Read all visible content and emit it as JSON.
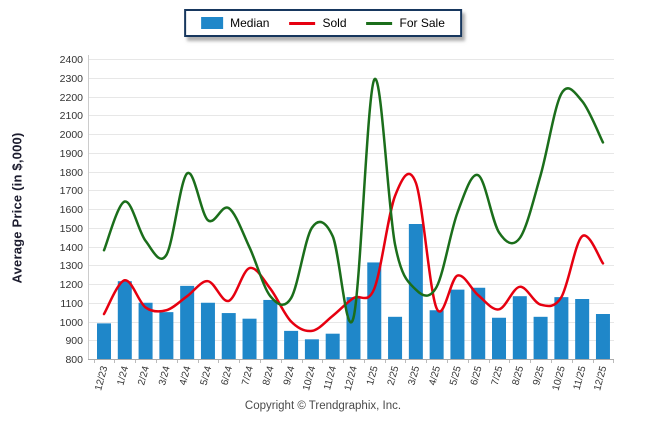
{
  "footer": {
    "copyright": "Copyright © Trendgraphix, Inc."
  },
  "axes": {
    "ylabel": "Average Price (in $,000)",
    "ytick_color": "#333333",
    "xtick_color": "#333333",
    "grid_color": "#e7e7e7",
    "axis_color": "#aaaaaa"
  },
  "chart_data": {
    "type": "bar",
    "subtype": "bar+line combo, smoothed (cardinal spline) lines",
    "title": "",
    "xlabel": "",
    "ylabel": "Average Price (in $,000)",
    "ylim": [
      800,
      2400
    ],
    "ytick_step": 100,
    "grid": true,
    "legend_position": "top-center",
    "categories": [
      "12/23",
      "1/24",
      "2/24",
      "3/24",
      "4/24",
      "5/24",
      "6/24",
      "7/24",
      "8/24",
      "9/24",
      "10/24",
      "11/24",
      "12/24",
      "1/25",
      "2/25",
      "3/25",
      "4/25",
      "5/25",
      "6/25",
      "7/25",
      "8/25",
      "9/25",
      "10/25",
      "11/25",
      "12/25"
    ],
    "series": [
      {
        "name": "Median",
        "type": "bar",
        "color": "#1f87c9",
        "values": [
          990,
          1215,
          1100,
          1050,
          1190,
          1100,
          1045,
          1015,
          1115,
          950,
          905,
          935,
          1130,
          1315,
          1025,
          1520,
          1060,
          1170,
          1180,
          1020,
          1135,
          1025,
          1130,
          1120,
          1040
        ]
      },
      {
        "name": "Sold",
        "type": "line",
        "color": "#e60010",
        "values": [
          1040,
          1220,
          1075,
          1060,
          1135,
          1215,
          1110,
          1285,
          1175,
          1000,
          950,
          1030,
          1125,
          1175,
          1670,
          1740,
          1070,
          1245,
          1140,
          1065,
          1185,
          1090,
          1130,
          1455,
          1310
        ]
      },
      {
        "name": "For Sale",
        "type": "line",
        "color": "#1b6e1b",
        "values": [
          1380,
          1640,
          1430,
          1355,
          1790,
          1540,
          1605,
          1395,
          1135,
          1125,
          1500,
          1455,
          1020,
          2290,
          1410,
          1170,
          1185,
          1580,
          1780,
          1475,
          1445,
          1780,
          2215,
          2175,
          1955
        ]
      }
    ]
  }
}
